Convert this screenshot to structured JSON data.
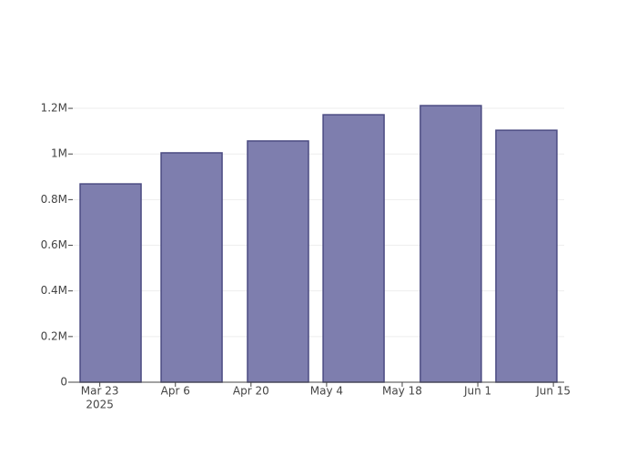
{
  "chart_data": {
    "type": "bar",
    "x": [
      "2025-03-25",
      "2025-04-09",
      "2025-04-25",
      "2025-05-09",
      "2025-05-27",
      "2025-06-10"
    ],
    "values": [
      869000,
      1005000,
      1057000,
      1172000,
      1212000,
      1104000
    ],
    "color": "#7e7eae",
    "edge_color": "#4b4b82",
    "xlim": [
      "2025-03-18",
      "2025-06-17"
    ],
    "xticks": [
      {
        "value": "2025-03-23",
        "label": "Mar 23",
        "sublabel": "2025"
      },
      {
        "value": "2025-04-06",
        "label": "Apr 6"
      },
      {
        "value": "2025-04-20",
        "label": "Apr 20"
      },
      {
        "value": "2025-05-04",
        "label": "May 4"
      },
      {
        "value": "2025-05-18",
        "label": "May 18"
      },
      {
        "value": "2025-06-01",
        "label": "Jun 1"
      },
      {
        "value": "2025-06-15",
        "label": "Jun 15"
      }
    ],
    "ylim": [
      0,
      1276000
    ],
    "yticks": [
      0,
      {
        "value": 200000,
        "label": "0.2M"
      },
      {
        "value": 400000,
        "label": "0.4M"
      },
      {
        "value": 600000,
        "label": "0.6M"
      },
      {
        "value": 800000,
        "label": "0.8M"
      },
      {
        "value": 1000000,
        "label": "1M"
      },
      {
        "value": 1200000,
        "label": "1.2M"
      }
    ],
    "grid": true
  }
}
